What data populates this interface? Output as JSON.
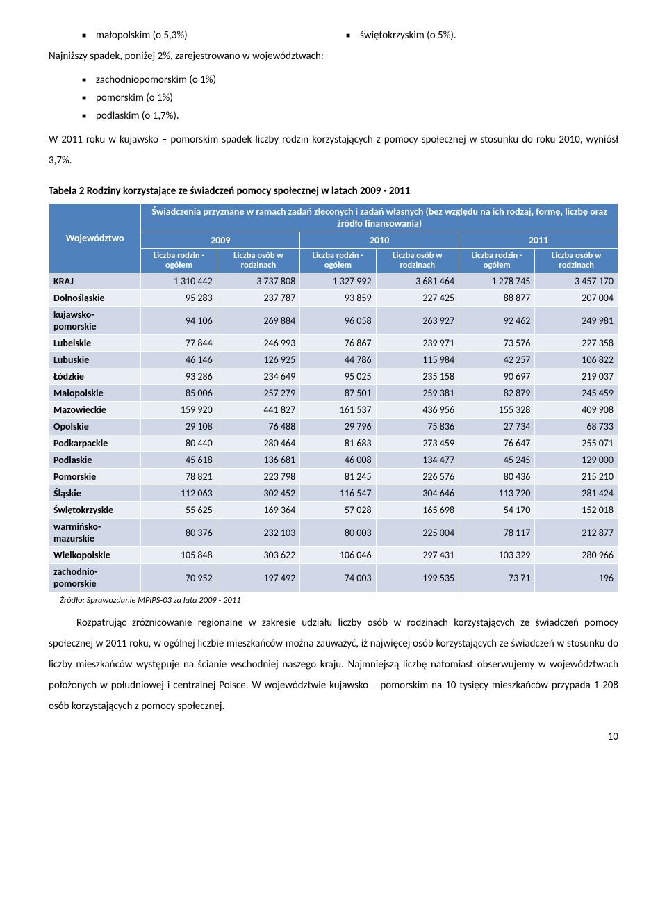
{
  "top": {
    "left_bullet": "małopolskim (o 5,3%)",
    "right_bullet": "świętokrzyskim (o 5%).",
    "intro_line": "Najniższy spadek, poniżej 2%, zarejestrowano w województwach:",
    "bullets": [
      "zachodniopomorskim (o 1%)",
      "pomorskim (o 1%)",
      "podlaskim (o 1,7%)."
    ],
    "para1": "W 2011 roku w kujawsko – pomorskim spadek liczby rodzin korzystających z pomocy społecznej w stosunku do roku 2010, wyniósł 3,7%."
  },
  "table": {
    "caption": "Tabela 2  Rodziny korzystające ze świadczeń pomocy społecznej w latach 2009 - 2011",
    "top_header": "Świadczenia przyznane w ramach zadań zleconych i zadań własnych (bez względu na ich rodzaj, formę, liczbę oraz źródło finansowania)",
    "row_header": "Województwo",
    "years": [
      "2009",
      "2010",
      "2011"
    ],
    "subheaders": [
      "Liczba rodzin - ogółem",
      "Liczba osób w rodzinach",
      "Liczba rodzin - ogółem",
      "Liczba osób w rodzinach",
      "Liczba rodzin - ogółem",
      "Liczba osób w rodzinach"
    ],
    "head_bg": "#4f81bd",
    "head_fg": "#ffffff",
    "band_a": "#d0d8e8",
    "band_b": "#e9edf4",
    "rows": [
      [
        "KRAJ",
        "1 310 442",
        "3 737 808",
        "1 327 992",
        "3 681 464",
        "1 278 745",
        "3 457 170"
      ],
      [
        "Dolnośląskie",
        "95 283",
        "237 787",
        "93 859",
        "227 425",
        "88 877",
        "207 004"
      ],
      [
        "kujawsko-pomorskie",
        "94 106",
        "269 884",
        "96 058",
        "263 927",
        "92 462",
        "249 981"
      ],
      [
        "Lubelskie",
        "77 844",
        "246 993",
        "76 867",
        "239 971",
        "73 576",
        "227 358"
      ],
      [
        "Lubuskie",
        "46 146",
        "126 925",
        "44 786",
        "115 984",
        "42 257",
        "106 822"
      ],
      [
        "Łódzkie",
        "93 286",
        "234 649",
        "95 025",
        "235 158",
        "90 697",
        "219 037"
      ],
      [
        "Małopolskie",
        "85 006",
        "257 279",
        "87 501",
        "259 381",
        "82 879",
        "245 459"
      ],
      [
        "Mazowieckie",
        "159 920",
        "441 827",
        "161 537",
        "436 956",
        "155 328",
        "409 908"
      ],
      [
        "Opolskie",
        "29 108",
        "76 488",
        "29 796",
        "75 836",
        "27 734",
        "68 733"
      ],
      [
        "Podkarpackie",
        "80 440",
        "280 464",
        "81 683",
        "273 459",
        "76 647",
        "255 071"
      ],
      [
        "Podlaskie",
        "45 618",
        "136 681",
        "46 008",
        "134 477",
        "45 245",
        "129 000"
      ],
      [
        "Pomorskie",
        "78 821",
        "223 798",
        "81 245",
        "226 576",
        "80 436",
        "215 210"
      ],
      [
        "Śląskie",
        "112 063",
        "302 452",
        "116 547",
        "304 646",
        "113 720",
        "281 424"
      ],
      [
        "Świętokrzyskie",
        "55 625",
        "169 364",
        "57 028",
        "165 698",
        "54 170",
        "152 018"
      ],
      [
        "warmińsko- mazurskie",
        "80 376",
        "232 103",
        "80 003",
        "225 004",
        "78 117",
        "212 877"
      ],
      [
        "Wielkopolskie",
        "105 848",
        "303 622",
        "106 046",
        "297 431",
        "103 329",
        "280 966"
      ],
      [
        "zachodnio-pomorskie",
        "70 952",
        "197 492",
        "74 003",
        "199 535",
        "73  71",
        "196"
      ]
    ],
    "source": "Źródło: Sprawozdanie MPiPS-03 za lata 2009 - 2011"
  },
  "bottom": {
    "para": "Rozpatrując zróżnicowanie regionalne w zakresie udziału liczby osób w rodzinach korzystających ze świadczeń pomocy społecznej w 2011 roku, w ogólnej liczbie mieszkańców można zauważyć, iż najwięcej osób korzystających ze świadczeń w stosunku do liczby mieszkańców występuje na ścianie wschodniej naszego kraju. Najmniejszą liczbę natomiast obserwujemy w województwach położonych w południowej i centralnej Polsce. W województwie kujawsko – pomorskim na 10 tysięcy mieszkańców przypada 1 208 osób korzystających z pomocy społecznej."
  },
  "pagenum": "10"
}
